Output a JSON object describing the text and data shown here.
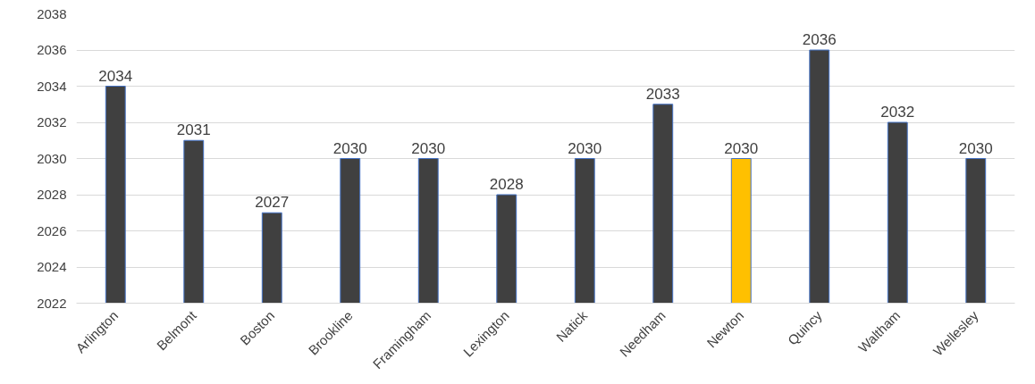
{
  "chart_data": {
    "type": "bar",
    "categories": [
      "Arlington",
      "Belmont",
      "Boston",
      "Brookline",
      "Framingham",
      "Lexington",
      "Natick",
      "Needham",
      "Newton",
      "Quincy",
      "Waltham",
      "Wellesley"
    ],
    "values": [
      2034,
      2031,
      2027,
      2030,
      2030,
      2028,
      2030,
      2033,
      2030,
      2036,
      2032,
      2030
    ],
    "colors": [
      "#404040",
      "#404040",
      "#404040",
      "#404040",
      "#404040",
      "#404040",
      "#404040",
      "#404040",
      "#ffc000",
      "#404040",
      "#404040",
      "#404040"
    ],
    "ylim": [
      2022,
      2038
    ],
    "yticks": [
      2022,
      2024,
      2026,
      2028,
      2030,
      2032,
      2034,
      2036,
      2038
    ],
    "grid": "y",
    "data_labels": true
  }
}
